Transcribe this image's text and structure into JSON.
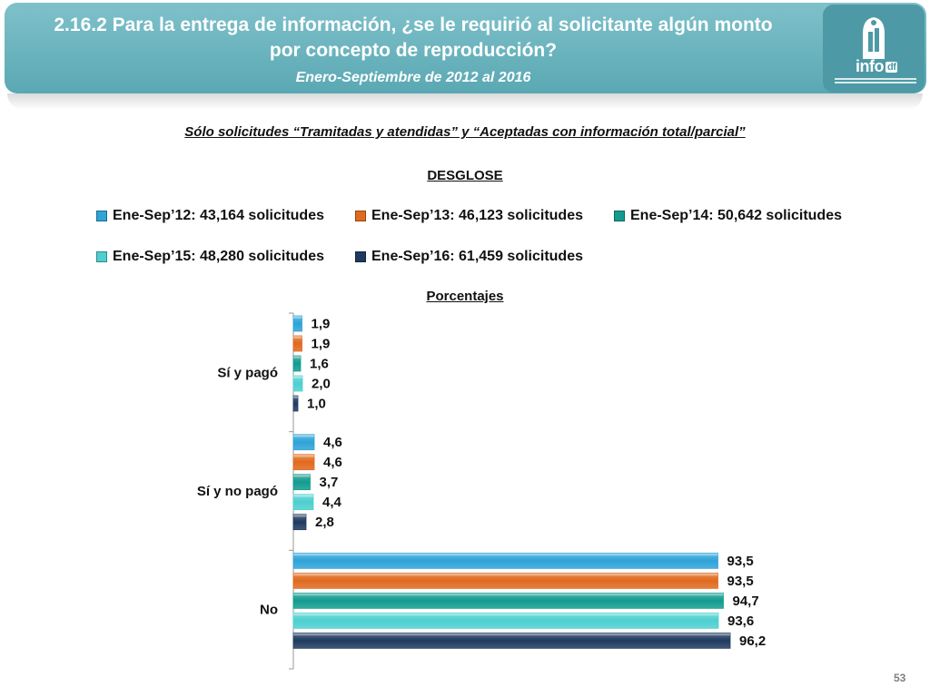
{
  "header": {
    "title_line1": "2.16.2 Para la entrega de información, ¿se le requirió al solicitante algún monto",
    "title_line2": "por concepto de reproducción?",
    "subtitle": "Enero-Septiembre de 2012 al 2016",
    "logo": {
      "brand": "info",
      "badge": "df",
      "icon": "city-emblem-icon"
    }
  },
  "note": "Sólo solicitudes “Tramitadas y atendidas” y “Aceptadas con información total/parcial”",
  "breakdown_label": "DESGLOSE",
  "units_label": "Porcentajes",
  "page_number": "53",
  "colors": {
    "header_bg": "#6bb3bd",
    "series": [
      "#2ea3d8",
      "#e06a1e",
      "#139b8f",
      "#4dcfd0",
      "#1f3a5f"
    ]
  },
  "chart_data": {
    "type": "bar",
    "orientation": "horizontal",
    "categories": [
      "Sí y pagó",
      "Sí y no pagó",
      "No"
    ],
    "series": [
      {
        "name": "Ene-Sep’12: 43,164 solicitudes",
        "values": [
          1.9,
          4.6,
          93.5
        ],
        "labels": [
          "1,9",
          "4,6",
          "93,5"
        ]
      },
      {
        "name": "Ene-Sep’13: 46,123 solicitudes",
        "values": [
          1.9,
          4.6,
          93.5
        ],
        "labels": [
          "1,9",
          "4,6",
          "93,5"
        ]
      },
      {
        "name": "Ene-Sep’14: 50,642 solicitudes",
        "values": [
          1.6,
          3.7,
          94.7
        ],
        "labels": [
          "1,6",
          "3,7",
          "94,7"
        ]
      },
      {
        "name": "Ene-Sep’15: 48,280 solicitudes",
        "values": [
          2.0,
          4.4,
          93.6
        ],
        "labels": [
          "2,0",
          "4,4",
          "93,6"
        ]
      },
      {
        "name": "Ene-Sep’16: 61,459 solicitudes",
        "values": [
          1.0,
          2.8,
          96.2
        ],
        "labels": [
          "1,0",
          "2,8",
          "96,2"
        ]
      }
    ],
    "xlim": [
      0,
      100
    ],
    "legend_position": "top",
    "grid": false
  }
}
